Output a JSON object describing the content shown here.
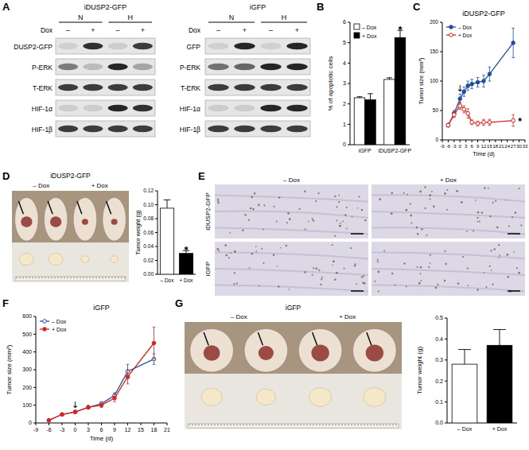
{
  "panel_labels": [
    "A",
    "B",
    "C",
    "D",
    "E",
    "F",
    "G"
  ],
  "blots": [
    {
      "title": "iDUSP2-GFP",
      "conditions": [
        "N",
        "H"
      ],
      "treatment": "Dox",
      "signs": [
        "–",
        "+",
        "–",
        "+"
      ],
      "rows": [
        "DUSP2-GFP",
        "P-ERK",
        "T-ERK",
        "HIF-1α",
        "HIF-1β"
      ]
    },
    {
      "title": "iGFP",
      "conditions": [
        "N",
        "H"
      ],
      "treatment": "Dox",
      "signs": [
        "–",
        "+",
        "–",
        "+"
      ],
      "rows": [
        "GFP",
        "P-ERK",
        "T-ERK",
        "HIF-1α",
        "HIF-1β"
      ]
    }
  ],
  "photos": [
    {
      "title": "iDUSP2-GFP",
      "columns": [
        "– Dox",
        "+ Dox"
      ]
    },
    {
      "title": "iGFP",
      "columns": [
        "– Dox",
        "+ Dox"
      ]
    }
  ],
  "micrographs": {
    "rows": [
      "iDUSP2-GFP",
      "iGFP"
    ],
    "columns": [
      "– Dox",
      "+ Dox"
    ]
  },
  "chart_data": [
    {
      "type": "bar",
      "y_label": "% of apoptotic cells",
      "categories": [
        "iGFP",
        "iDUSP2-GFP"
      ],
      "series": [
        {
          "name": "– Dox",
          "color": "#ffffff",
          "values": [
            2.3,
            3.2
          ],
          "errors": [
            0.05,
            0.08
          ]
        },
        {
          "name": "+ Dox",
          "color": "#000000",
          "values": [
            2.2,
            5.25
          ],
          "errors": [
            0.3,
            0.35
          ]
        }
      ],
      "ylim": [
        0,
        6
      ],
      "yticks": [
        0,
        1,
        2,
        3,
        4,
        5,
        6
      ],
      "legend": "upper left",
      "annotations": [
        {
          "text": "*",
          "series": "+ Dox",
          "category": "iDUSP2-GFP"
        }
      ]
    },
    {
      "type": "line",
      "title": "iDUSP2-GFP",
      "x_label": "Time (d)",
      "y_label": "Tumor size (mm³)",
      "x": [
        -6,
        -3,
        0,
        2,
        4,
        6,
        9,
        12,
        15,
        27
      ],
      "series": [
        {
          "name": "– Dox",
          "color": "#1f4ea0",
          "marker": "circle",
          "values": [
            25,
            45,
            70,
            82,
            92,
            95,
            98,
            100,
            112,
            165
          ],
          "errors": [
            3,
            5,
            8,
            8,
            8,
            8,
            8,
            10,
            12,
            25
          ]
        },
        {
          "name": "+ Dox",
          "color": "#d7261e",
          "marker": "open_circle",
          "values": [
            25,
            43,
            58,
            52,
            45,
            30,
            28,
            30,
            30,
            33
          ],
          "errors": [
            3,
            5,
            6,
            6,
            8,
            4,
            4,
            5,
            5,
            10
          ]
        }
      ],
      "xlim": [
        -9,
        33
      ],
      "xticks": [
        -9,
        -6,
        -3,
        0,
        3,
        6,
        9,
        12,
        15,
        18,
        21,
        24,
        27,
        30,
        33
      ],
      "ylim": [
        0,
        200
      ],
      "yticks": [
        0,
        50,
        100,
        150,
        200
      ],
      "legend": "upper left",
      "annotations": [
        {
          "text": "↓",
          "x": 0
        },
        {
          "text": "*",
          "series": "+ Dox",
          "x": 27
        }
      ]
    },
    {
      "type": "bar",
      "y_label": "Tumor weight (g)",
      "categories": [
        "– Dox",
        "+ Dox"
      ],
      "values": [
        0.095,
        0.03
      ],
      "errors": [
        0.012,
        0.004
      ],
      "colors": [
        "#ffffff",
        "#000000"
      ],
      "ylim": [
        0,
        0.12
      ],
      "yticks": [
        {
          "value": 0,
          "label": "0.00"
        },
        {
          "value": 0.02,
          "label": "0.02"
        },
        {
          "value": 0.04,
          "label": "0.04"
        },
        {
          "value": 0.06,
          "label": "0.06"
        },
        {
          "value": 0.08,
          "label": "0.08"
        },
        {
          "value": 0.1,
          "label": "0.10"
        },
        {
          "value": 0.12,
          "label": "0.12"
        }
      ],
      "annotations": [
        {
          "text": "*",
          "category": "+ Dox"
        }
      ]
    },
    {
      "type": "line",
      "title": "iGFP",
      "x_label": "Time (d)",
      "y_label": "Tumor size (mm³)",
      "x": [
        -6,
        -3,
        0,
        3,
        6,
        9,
        12,
        18
      ],
      "series": [
        {
          "name": "– Dox",
          "color": "#1f4ea0",
          "marker": "open_circle",
          "values": [
            15,
            48,
            62,
            88,
            108,
            155,
            290,
            360
          ],
          "errors": [
            3,
            5,
            8,
            10,
            12,
            15,
            40,
            30
          ]
        },
        {
          "name": "+ Dox",
          "color": "#d7261e",
          "marker": "circle",
          "values": [
            15,
            48,
            62,
            88,
            100,
            140,
            260,
            450
          ],
          "errors": [
            3,
            5,
            8,
            10,
            12,
            20,
            40,
            90
          ]
        }
      ],
      "xlim": [
        -9,
        21
      ],
      "xticks": [
        -9,
        -6,
        -3,
        0,
        3,
        6,
        9,
        12,
        15,
        18,
        21
      ],
      "ylim": [
        0,
        600
      ],
      "yticks": [
        0,
        100,
        200,
        300,
        400,
        500,
        600
      ],
      "legend": "upper left",
      "annotations": [
        {
          "text": "↓",
          "x": 0
        }
      ]
    },
    {
      "type": "bar",
      "y_label": "Tumor weight (g)",
      "categories": [
        "– Dox",
        "+ Dox"
      ],
      "values": [
        0.28,
        0.37
      ],
      "errors": [
        0.07,
        0.075
      ],
      "colors": [
        "#ffffff",
        "#000000"
      ],
      "ylim": [
        0,
        0.5
      ],
      "yticks": [
        {
          "value": 0,
          "label": "0.0"
        },
        0.1,
        0.2,
        0.3,
        0.4,
        0.5
      ]
    }
  ]
}
